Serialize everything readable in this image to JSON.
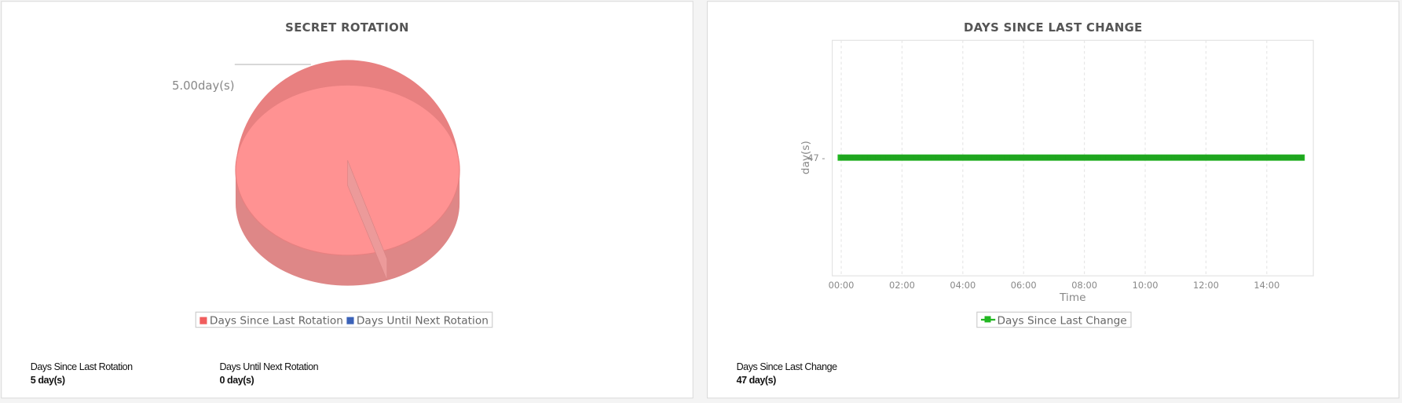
{
  "left_panel": {
    "title": "SECRET ROTATION",
    "pie_label": "5.00day(s)",
    "legend": [
      {
        "label": "Days Since Last Rotation",
        "color": "#f05d5d"
      },
      {
        "label": "Days Until Next Rotation",
        "color": "#3b62b8"
      }
    ],
    "stats": [
      {
        "label": "Days Since Last Rotation",
        "value": "5 day(s)"
      },
      {
        "label": "Days Until Next Rotation",
        "value": "0 day(s)"
      }
    ]
  },
  "right_panel": {
    "title": "DAYS SINCE LAST CHANGE",
    "legend": [
      {
        "label": "Days Since Last Change",
        "color": "#22b722"
      }
    ],
    "stats": [
      {
        "label": "Days Since Last Change",
        "value": "47 day(s)"
      }
    ]
  },
  "chart_data": [
    {
      "type": "pie",
      "title": "SECRET ROTATION",
      "categories": [
        "Days Since Last Rotation",
        "Days Until Next Rotation"
      ],
      "values": [
        5,
        0
      ],
      "data_labels": [
        "5.00day(s)"
      ],
      "legend": "bottom",
      "colors": [
        "#ff9090",
        "#3b62b8"
      ],
      "style": "3d"
    },
    {
      "type": "line",
      "title": "DAYS SINCE LAST CHANGE",
      "xlabel": "Time",
      "ylabel": "day(s)",
      "x_ticks": [
        "00:00",
        "02:00",
        "04:00",
        "06:00",
        "08:00",
        "10:00",
        "12:00",
        "14:00"
      ],
      "y_ticks": [
        "47"
      ],
      "series": [
        {
          "name": "Days Since Last Change",
          "x_range": [
            "00:00",
            "15:15"
          ],
          "values_constant": 47,
          "color": "#22b722"
        }
      ],
      "grid": "vertical dashed",
      "legend": "bottom"
    }
  ]
}
